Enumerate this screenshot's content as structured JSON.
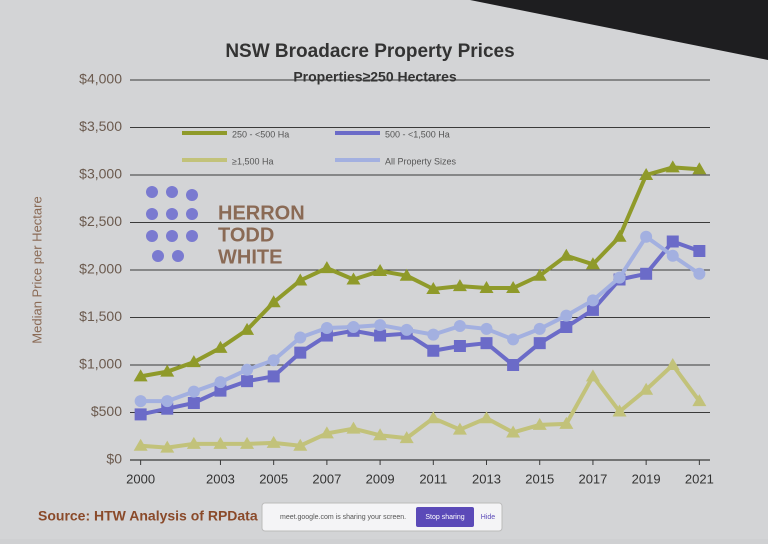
{
  "chart_data": {
    "type": "line",
    "title": "NSW Broadacre Property Prices",
    "subtitle": "Properties≥250 Hectares",
    "y_label": "Median Price per Hectare",
    "source": "Source: HTW Analysis of RPData",
    "logo": [
      "HERRON",
      "TODD",
      "WHITE"
    ],
    "x": [
      2000,
      2001,
      2002,
      2003,
      2004,
      2005,
      2006,
      2007,
      2008,
      2009,
      2010,
      2011,
      2012,
      2013,
      2014,
      2015,
      2016,
      2017,
      2018,
      2019,
      2020,
      2021
    ],
    "xlim": [
      1999.6,
      2021.4
    ],
    "xticks": [
      2000,
      2003,
      2005,
      2007,
      2009,
      2011,
      2013,
      2015,
      2017,
      2019,
      2021
    ],
    "ylim": [
      0,
      4000
    ],
    "yticks": [
      {
        "value": 0,
        "label": "$0"
      },
      {
        "value": 500,
        "label": "$500"
      },
      {
        "value": 1000,
        "label": "$1,000"
      },
      {
        "value": 1500,
        "label": "$1,500"
      },
      {
        "value": 2000,
        "label": "$2,000"
      },
      {
        "value": 2500,
        "label": "$2,500"
      },
      {
        "value": 3000,
        "label": "$3,000"
      },
      {
        "value": 3500,
        "label": "$3,500"
      },
      {
        "value": 4000,
        "label": "$4,000"
      }
    ],
    "grid": true,
    "series": [
      {
        "name": "250 - <500 Ha",
        "color": "#8f9a2a",
        "marker": "triangle",
        "values": [
          880,
          930,
          1030,
          1180,
          1370,
          1660,
          1890,
          2020,
          1900,
          1990,
          1940,
          1800,
          1830,
          1810,
          1810,
          1940,
          2150,
          2060,
          2350,
          3000,
          3080,
          3060
        ]
      },
      {
        "name": "500 - <1,500 Ha",
        "color": "#6b6bc8",
        "marker": "square",
        "values": [
          480,
          540,
          600,
          730,
          830,
          880,
          1130,
          1310,
          1360,
          1310,
          1330,
          1150,
          1200,
          1230,
          1000,
          1230,
          1400,
          1580,
          1900,
          1960,
          2300,
          2200
        ]
      },
      {
        "name": "≥1,500 Ha",
        "color": "#c2c27a",
        "marker": "triangle",
        "values": [
          150,
          130,
          170,
          170,
          170,
          180,
          150,
          280,
          330,
          260,
          230,
          440,
          320,
          440,
          290,
          370,
          380,
          880,
          510,
          740,
          1000,
          620
        ]
      },
      {
        "name": "All Property Sizes",
        "color": "#a3b0e0",
        "marker": "circle",
        "values": [
          620,
          620,
          720,
          820,
          950,
          1050,
          1290,
          1390,
          1400,
          1420,
          1370,
          1320,
          1410,
          1380,
          1270,
          1380,
          1520,
          1680,
          1920,
          2350,
          2150,
          1960
        ]
      }
    ]
  },
  "screen_share": {
    "message": "meet.google.com is sharing your screen.",
    "stop": "Stop sharing",
    "hide": "Hide"
  }
}
